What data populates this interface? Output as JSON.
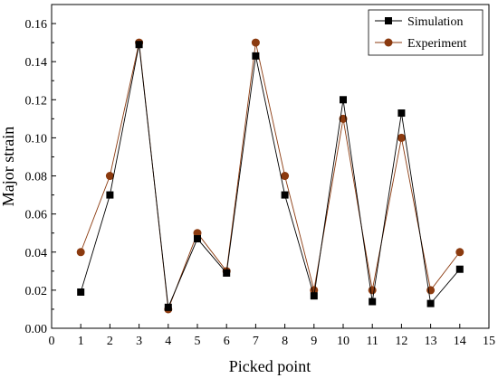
{
  "chart_data": {
    "type": "line",
    "title": "",
    "xlabel": "Picked point",
    "ylabel": "Major strain",
    "xlim": [
      0,
      15
    ],
    "ylim": [
      0,
      0.17
    ],
    "xticks": [
      0,
      1,
      2,
      3,
      4,
      5,
      6,
      7,
      8,
      9,
      10,
      11,
      12,
      13,
      14,
      15
    ],
    "yticks": [
      "0.00",
      "0.02",
      "0.04",
      "0.06",
      "0.08",
      "0.10",
      "0.12",
      "0.14",
      "0.16"
    ],
    "grid": false,
    "legend_position": "top-right",
    "x": [
      1,
      2,
      3,
      4,
      5,
      6,
      7,
      8,
      9,
      10,
      11,
      12,
      13,
      14
    ],
    "series": [
      {
        "name": "Simulation",
        "marker": "square",
        "color": "#000000",
        "values": [
          0.019,
          0.07,
          0.149,
          0.011,
          0.047,
          0.029,
          0.143,
          0.07,
          0.017,
          0.12,
          0.014,
          0.113,
          0.013,
          0.031
        ]
      },
      {
        "name": "Experiment",
        "marker": "circle",
        "color": "#8B3A0F",
        "values": [
          0.04,
          0.08,
          0.15,
          0.01,
          0.05,
          0.03,
          0.15,
          0.08,
          0.02,
          0.11,
          0.02,
          0.1,
          0.02,
          0.04
        ]
      }
    ]
  }
}
